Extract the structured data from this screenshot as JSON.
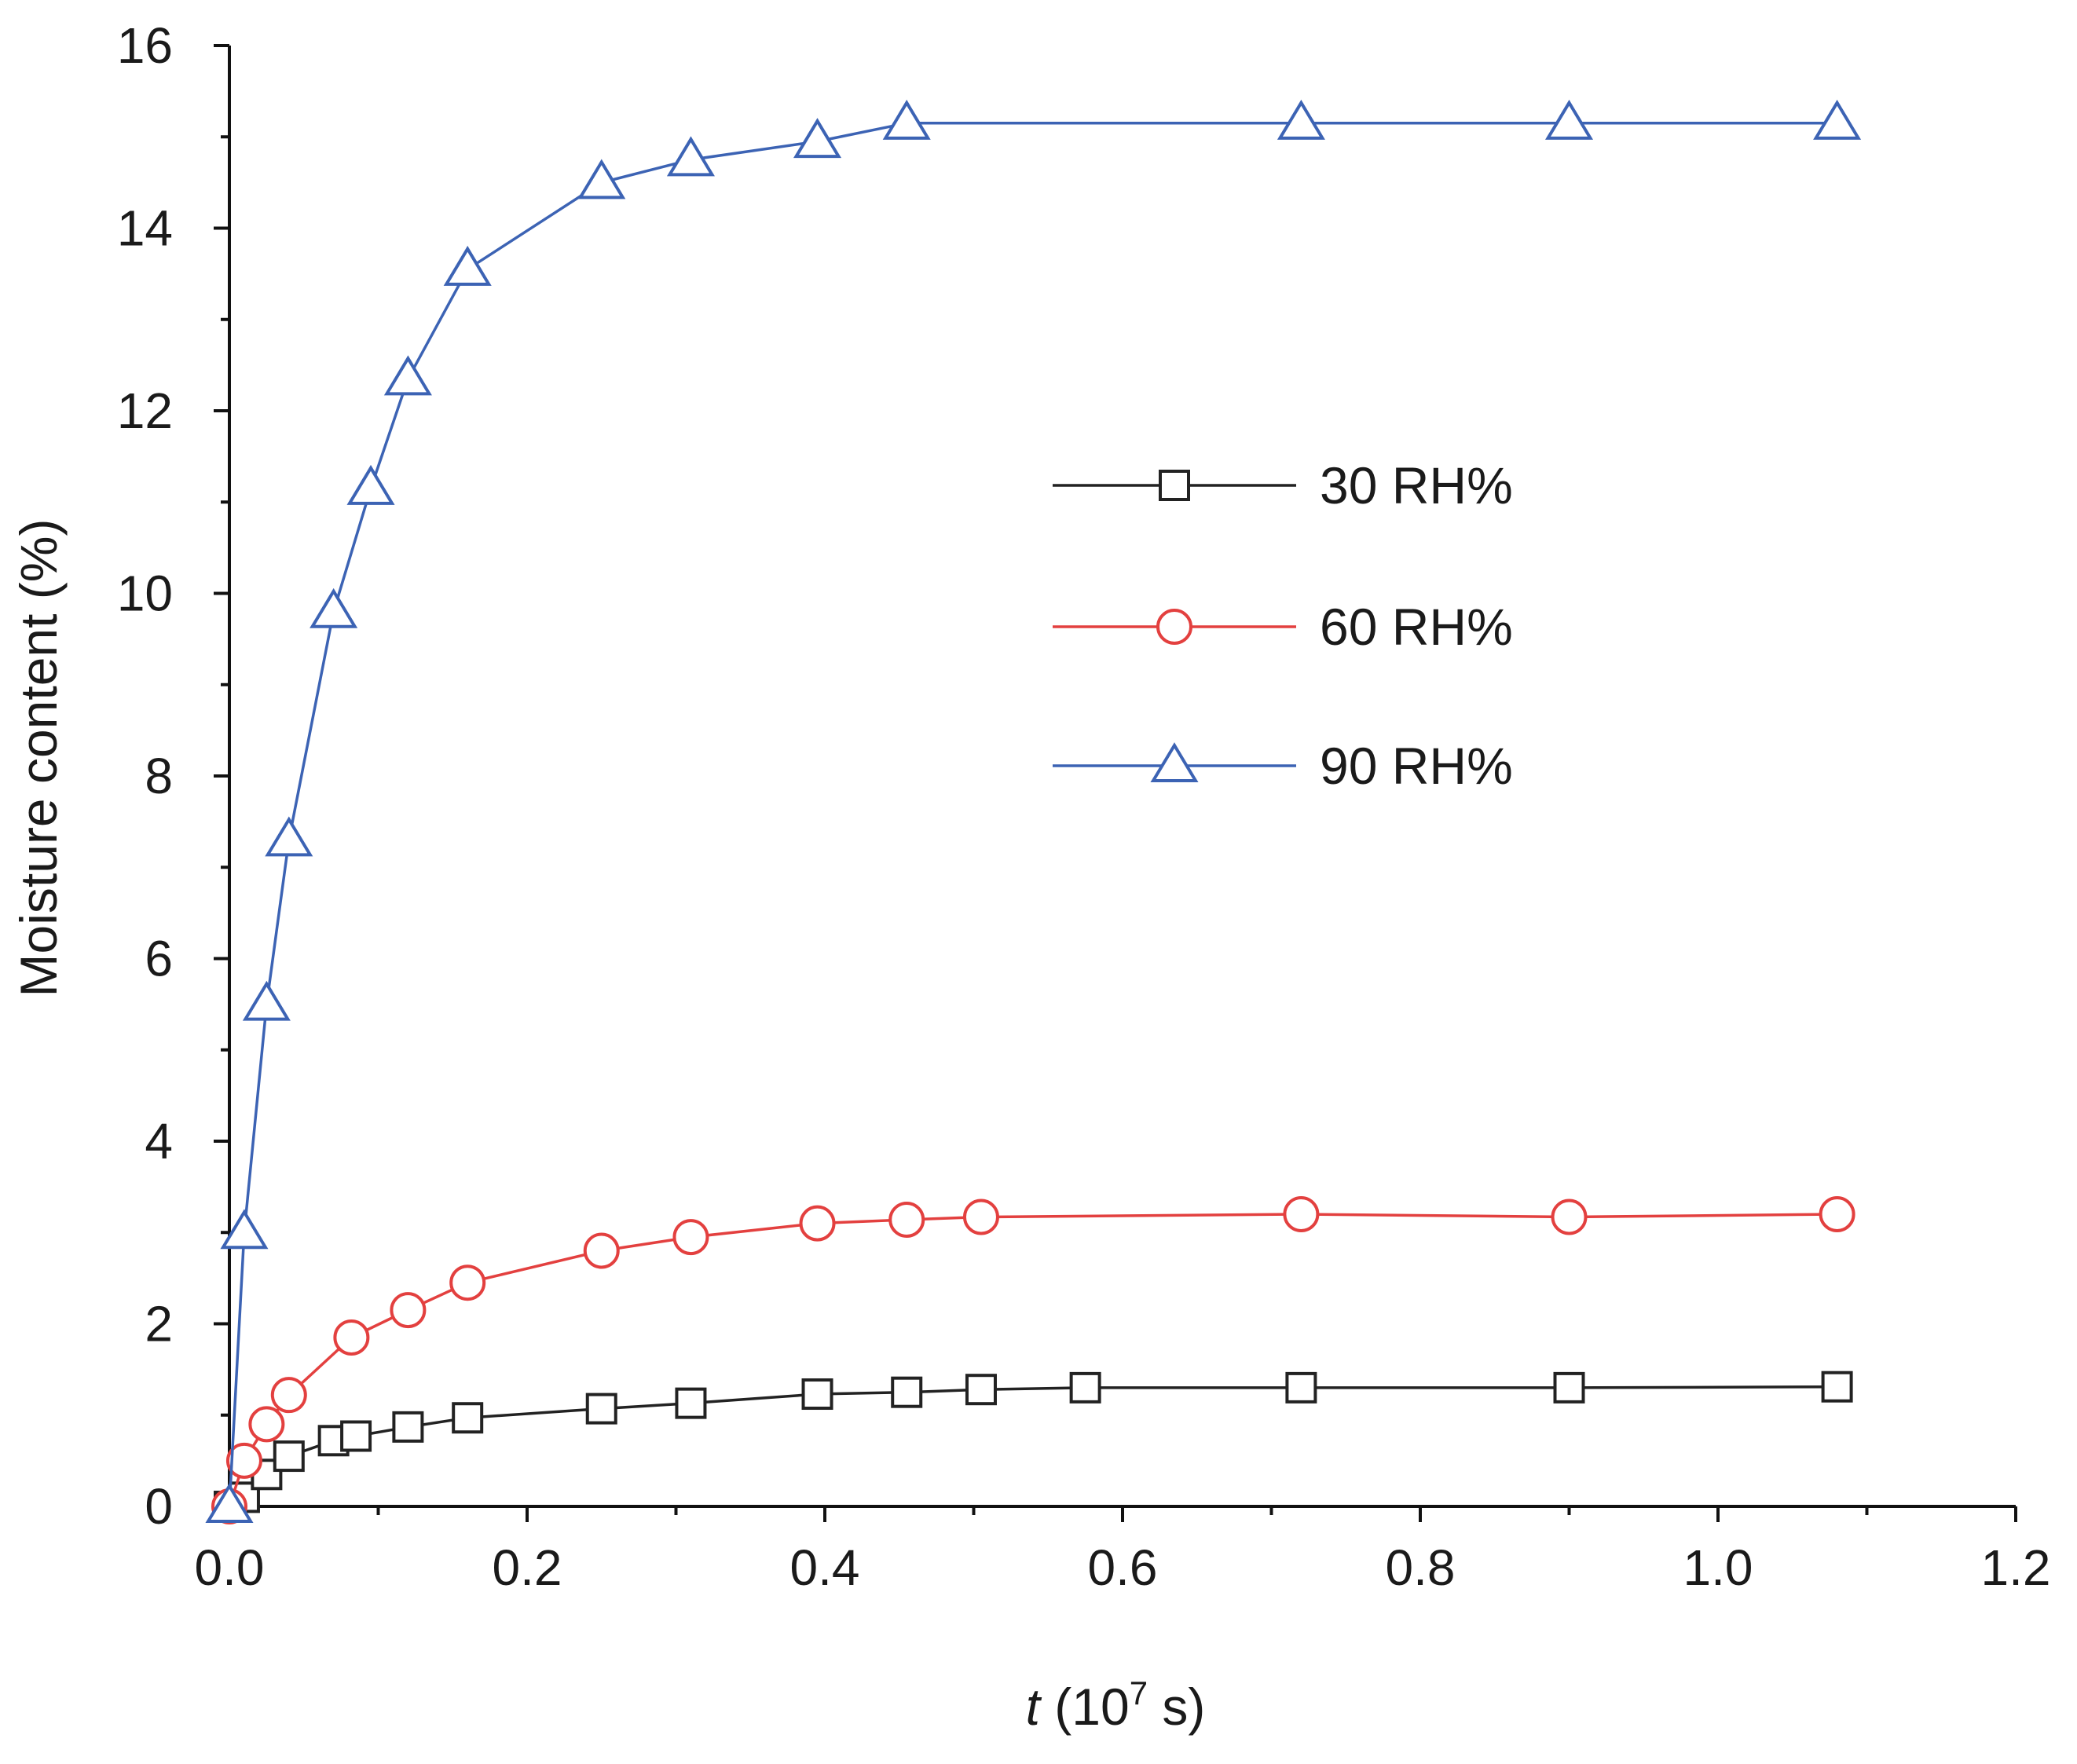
{
  "chart_data": {
    "type": "line",
    "title": "",
    "xlabel": {
      "italic": "t",
      "prefix": " (10",
      "sup": "7",
      "suffix": " s)"
    },
    "ylabel": "Moisture content (%)",
    "xlim": [
      0.0,
      1.2
    ],
    "ylim": [
      0,
      16
    ],
    "x_ticks": [
      0.0,
      0.2,
      0.4,
      0.6,
      0.8,
      1.0,
      1.2
    ],
    "x_tick_labels": [
      "0.0",
      "0.2",
      "0.4",
      "0.6",
      "0.8",
      "1.0",
      "1.2"
    ],
    "y_ticks": [
      0,
      2,
      4,
      6,
      8,
      10,
      12,
      14,
      16
    ],
    "y_tick_labels": [
      "0",
      "2",
      "4",
      "6",
      "8",
      "10",
      "12",
      "14",
      "16"
    ],
    "grid": false,
    "legend_position": "right-middle",
    "series": [
      {
        "name": "30 RH%",
        "marker": "square",
        "color": "#222222",
        "x": [
          0.0,
          0.01,
          0.025,
          0.04,
          0.07,
          0.085,
          0.12,
          0.16,
          0.25,
          0.31,
          0.395,
          0.455,
          0.505,
          0.575,
          0.72,
          0.9,
          1.08
        ],
        "y": [
          0.0,
          0.1,
          0.35,
          0.55,
          0.72,
          0.77,
          0.87,
          0.97,
          1.07,
          1.13,
          1.23,
          1.25,
          1.28,
          1.3,
          1.3,
          1.3,
          1.31
        ]
      },
      {
        "name": "60 RH%",
        "marker": "circle",
        "color": "#e3403f",
        "x": [
          0.0,
          0.01,
          0.025,
          0.04,
          0.082,
          0.12,
          0.16,
          0.25,
          0.31,
          0.395,
          0.455,
          0.505,
          0.72,
          0.9,
          1.08
        ],
        "y": [
          0.0,
          0.5,
          0.9,
          1.22,
          1.85,
          2.15,
          2.45,
          2.8,
          2.95,
          3.1,
          3.14,
          3.17,
          3.2,
          3.17,
          3.2
        ]
      },
      {
        "name": "90 RH%",
        "marker": "triangle",
        "color": "#3c63b4",
        "x": [
          0.0,
          0.01,
          0.025,
          0.04,
          0.07,
          0.095,
          0.12,
          0.16,
          0.25,
          0.31,
          0.395,
          0.455,
          0.72,
          0.9,
          1.08
        ],
        "y": [
          0.0,
          3.0,
          5.5,
          7.3,
          9.8,
          11.15,
          12.35,
          13.55,
          14.5,
          14.75,
          14.95,
          15.15,
          15.15,
          15.15,
          15.15
        ]
      }
    ]
  }
}
